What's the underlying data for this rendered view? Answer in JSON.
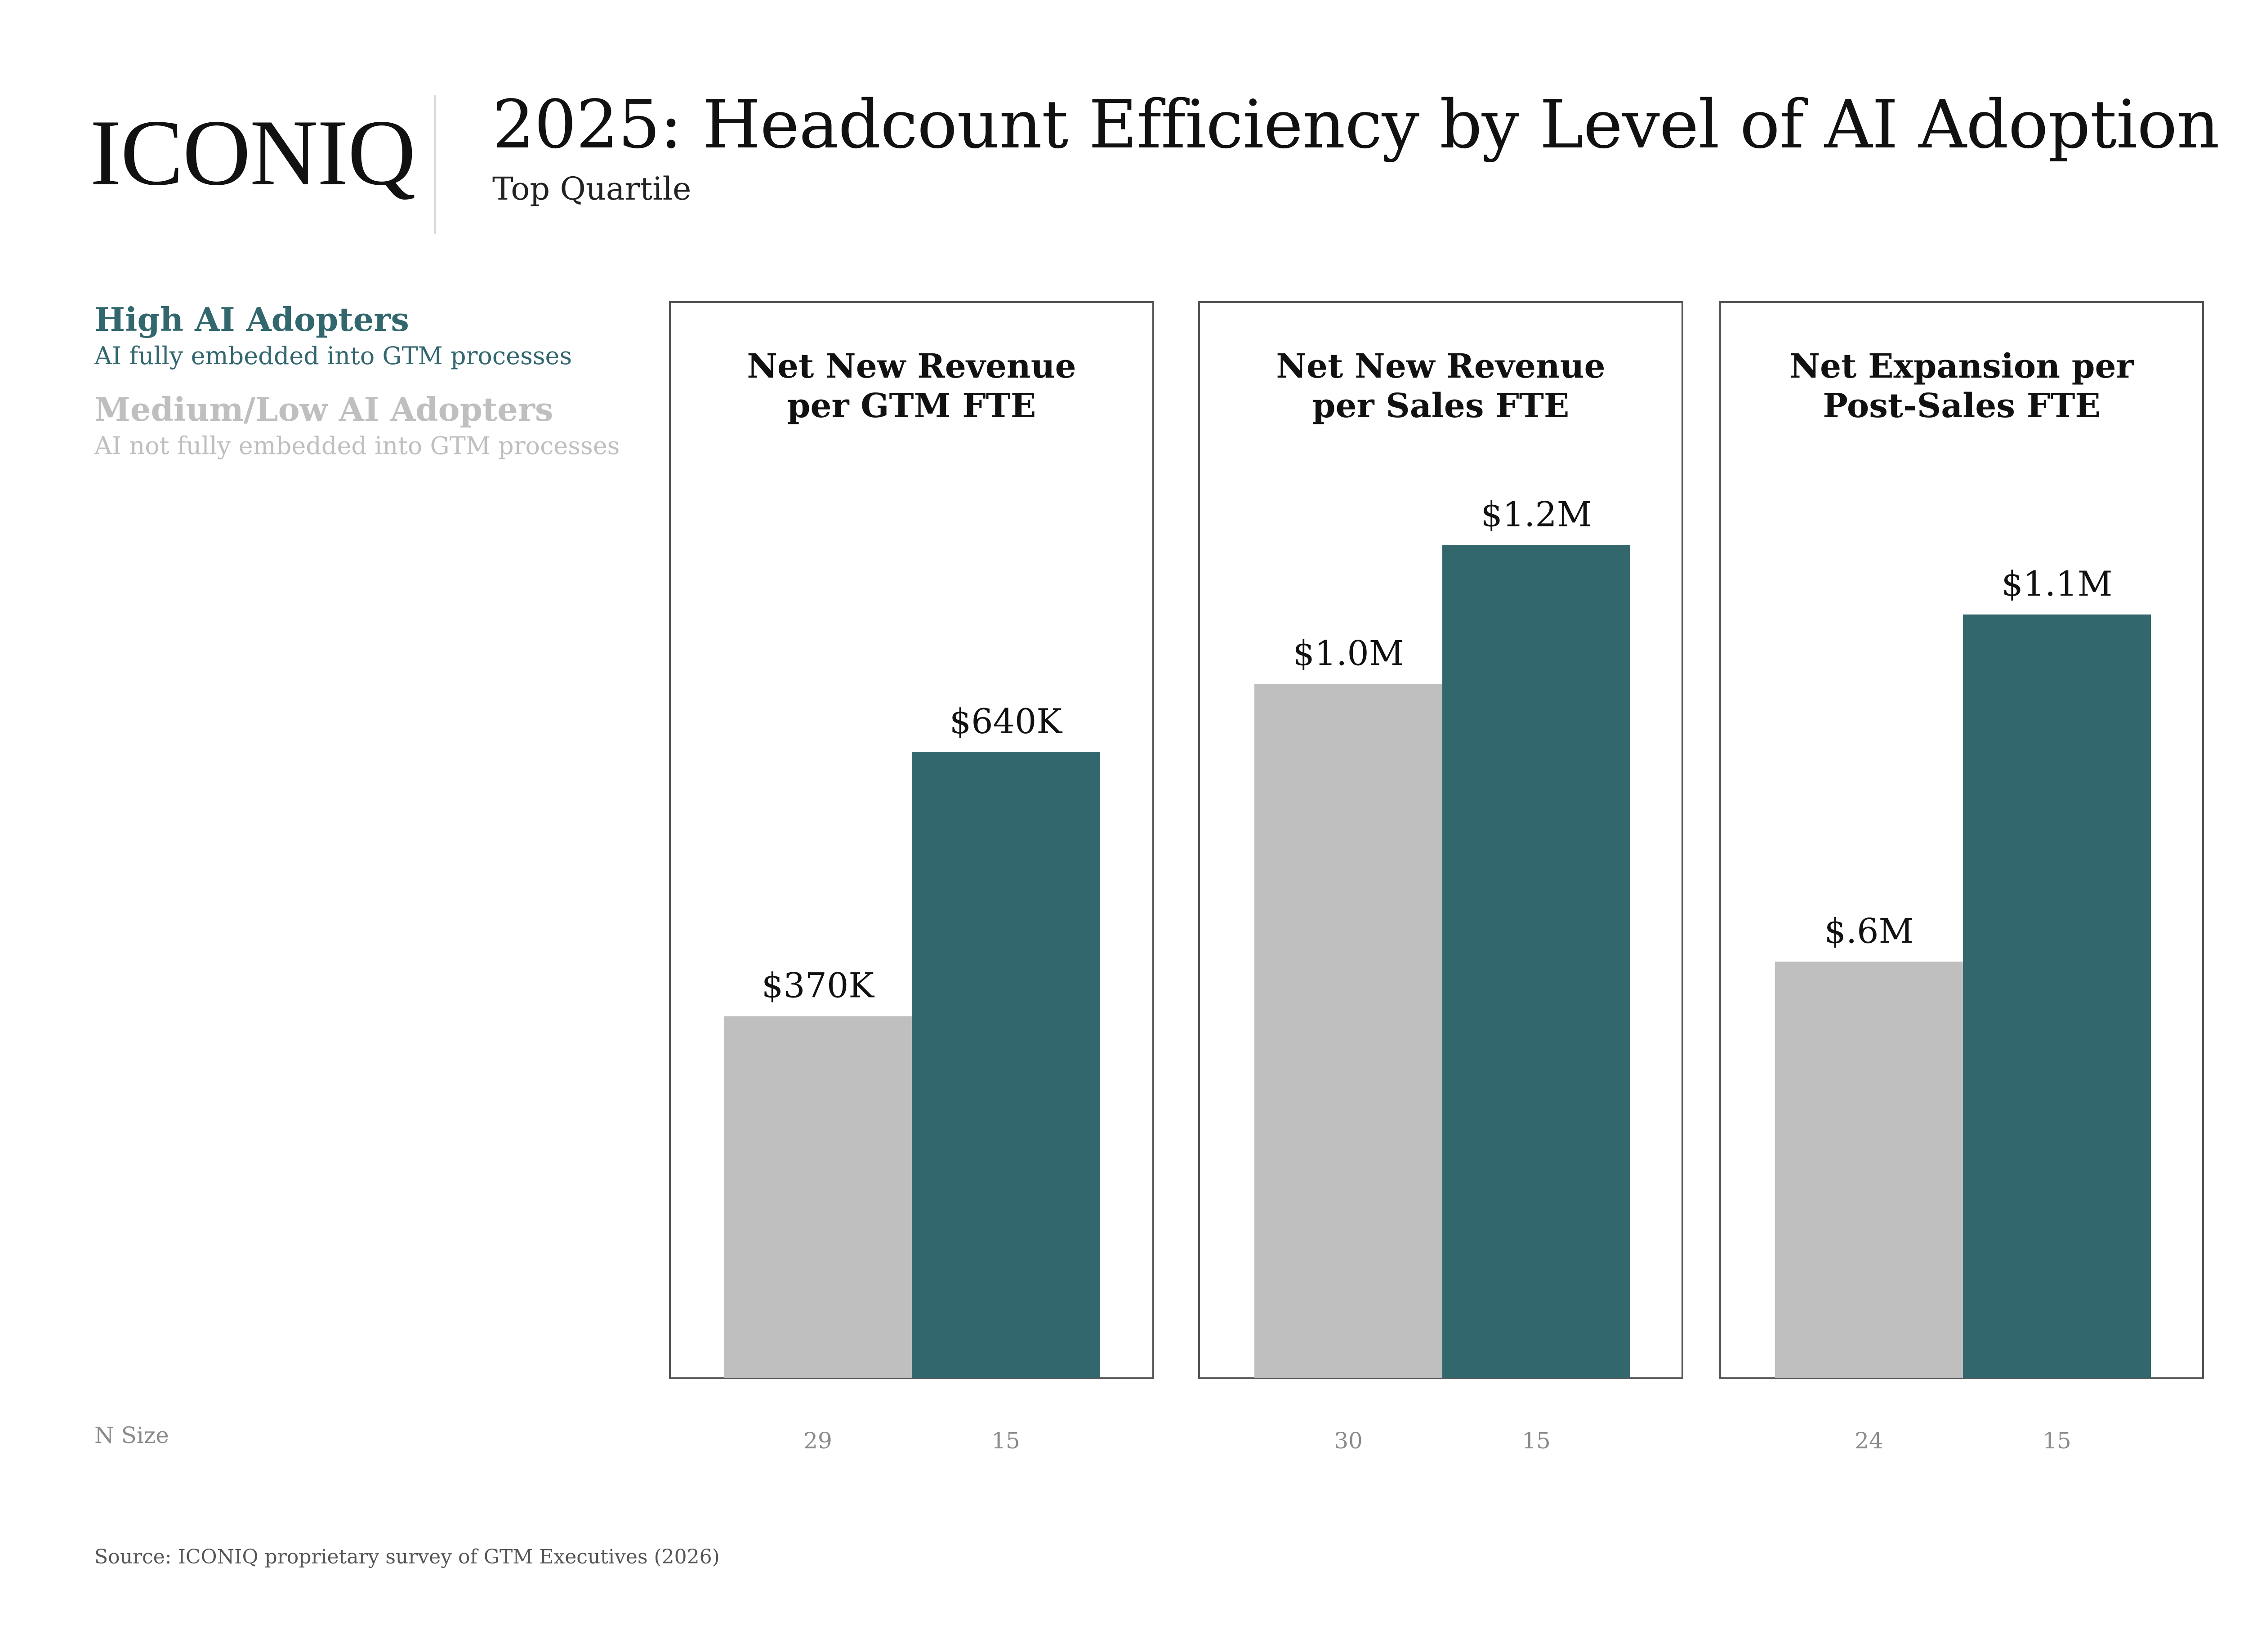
{
  "brand": {
    "logo_text": "ICONIQ"
  },
  "header": {
    "title": "2025: Headcount Efficiency by Level of AI Adoption",
    "subtitle": "Top Quartile"
  },
  "legend": [
    {
      "name": "High AI Adopters",
      "description": "AI fully embedded into GTM processes",
      "color": "#33676E"
    },
    {
      "name": "Medium/Low AI Adopters",
      "description": "AI not fully embedded into GTM processes",
      "color": "#BFBFBF"
    }
  ],
  "n_size_label": "N Size",
  "source": "Source: ICONIQ proprietary survey of GTM Executives (2026)",
  "colors": {
    "high": "#33676E",
    "low": "#BFBFBF",
    "panel_border": "#555555"
  },
  "chart_data": [
    {
      "type": "bar",
      "title": "Net New Revenue per GTM FTE",
      "title_lines": [
        "Net New Revenue",
        "per GTM FTE"
      ],
      "categories": [
        "Medium/Low AI Adopters",
        "High AI Adopters"
      ],
      "values": [
        370000,
        640000
      ],
      "value_labels": [
        "$370K",
        "$640K"
      ],
      "n_sizes": [
        "29",
        "15"
      ],
      "ylim": [
        0,
        1100000
      ]
    },
    {
      "type": "bar",
      "title": "Net New Revenue per Sales FTE",
      "title_lines": [
        "Net New Revenue",
        "per Sales FTE"
      ],
      "categories": [
        "Medium/Low AI Adopters",
        "High AI Adopters"
      ],
      "values": [
        1000000,
        1200000
      ],
      "value_labels": [
        "$1.0M",
        "$1.2M"
      ],
      "n_sizes": [
        "30",
        "15"
      ],
      "ylim": [
        0,
        1550000
      ]
    },
    {
      "type": "bar",
      "title": "Net Expansion per Post-Sales FTE",
      "title_lines": [
        "Net Expansion per",
        "Post-Sales FTE"
      ],
      "categories": [
        "Medium/Low AI Adopters",
        "High AI Adopters"
      ],
      "values": [
        600000,
        1100000
      ],
      "value_labels": [
        "$.6M",
        "$1.1M"
      ],
      "n_sizes": [
        "24",
        "15"
      ],
      "ylim": [
        0,
        1550000
      ]
    }
  ]
}
